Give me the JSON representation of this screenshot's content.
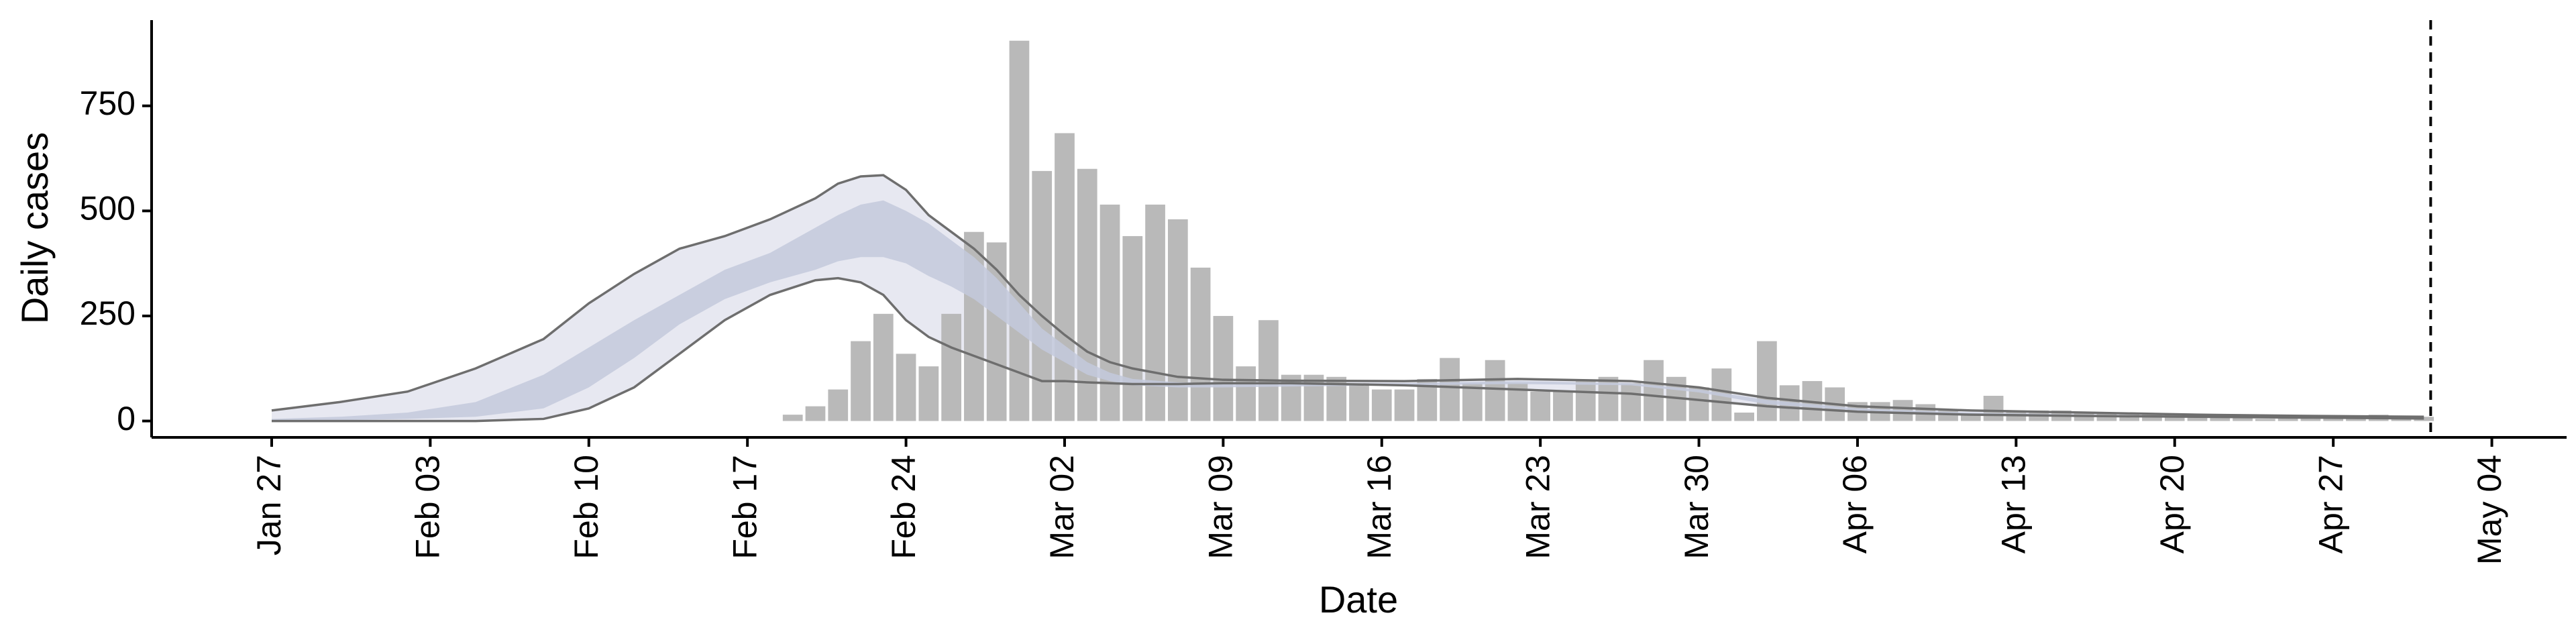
{
  "chart_data": {
    "type": "bar",
    "x_label": "Date",
    "y_label": "Daily cases",
    "x": [
      23,
      24,
      25,
      26,
      27,
      28,
      29,
      30,
      31,
      32,
      33,
      34,
      35,
      36,
      37,
      38,
      39,
      40,
      41,
      42,
      43,
      44,
      45,
      46,
      47,
      48,
      49,
      50,
      51,
      52,
      53,
      54,
      55,
      56,
      57,
      58,
      59,
      60,
      61,
      62,
      63,
      64,
      65,
      66,
      67,
      68,
      69,
      70,
      71,
      72,
      73,
      74,
      75,
      76,
      77,
      78,
      79,
      80,
      81,
      82,
      83,
      84,
      85,
      86,
      87,
      88,
      89,
      90,
      91,
      92,
      93,
      94,
      95
    ],
    "values": [
      15,
      35,
      75,
      190,
      255,
      160,
      130,
      255,
      450,
      425,
      905,
      595,
      685,
      600,
      515,
      440,
      515,
      480,
      365,
      250,
      130,
      240,
      110,
      110,
      105,
      90,
      75,
      75,
      100,
      150,
      90,
      145,
      90,
      70,
      70,
      95,
      105,
      90,
      145,
      105,
      80,
      125,
      20,
      190,
      85,
      95,
      80,
      45,
      45,
      50,
      40,
      25,
      15,
      60,
      25,
      25,
      25,
      20,
      20,
      15,
      15,
      15,
      15,
      10,
      10,
      5,
      10,
      10,
      10,
      10,
      15,
      5,
      10
    ],
    "color": "#b9b9b9",
    "ribbons": {
      "x": [
        0,
        3,
        6,
        9,
        12,
        14,
        16,
        18,
        20,
        22,
        24,
        25,
        26,
        27,
        28,
        29,
        30,
        31,
        32,
        33,
        34,
        35,
        36,
        37,
        38,
        40,
        42,
        45,
        50,
        55,
        60,
        63,
        66,
        70,
        75,
        80,
        85,
        90,
        95
      ],
      "outer_upper": [
        25,
        45,
        70,
        125,
        195,
        280,
        350,
        410,
        440,
        480,
        530,
        565,
        582,
        585,
        550,
        490,
        450,
        410,
        360,
        300,
        250,
        205,
        165,
        140,
        125,
        105,
        98,
        96,
        95,
        100,
        95,
        80,
        55,
        35,
        25,
        20,
        15,
        12,
        10
      ],
      "inner_upper": [
        5,
        10,
        20,
        45,
        110,
        175,
        240,
        300,
        360,
        400,
        460,
        490,
        515,
        525,
        500,
        470,
        430,
        390,
        340,
        280,
        220,
        180,
        140,
        115,
        100,
        92,
        90,
        90,
        90,
        95,
        90,
        75,
        50,
        30,
        20,
        15,
        12,
        10,
        8
      ],
      "inner_lower": [
        0,
        2,
        5,
        10,
        30,
        80,
        150,
        230,
        290,
        330,
        360,
        380,
        390,
        390,
        375,
        345,
        320,
        290,
        250,
        210,
        170,
        140,
        110,
        95,
        85,
        80,
        80,
        82,
        85,
        88,
        85,
        68,
        40,
        25,
        15,
        12,
        10,
        8,
        6
      ],
      "outer_lower": [
        0,
        0,
        0,
        0,
        5,
        30,
        80,
        160,
        240,
        300,
        335,
        340,
        330,
        300,
        240,
        200,
        175,
        155,
        135,
        115,
        95,
        95,
        92,
        90,
        88,
        88,
        90,
        90,
        85,
        75,
        65,
        50,
        35,
        22,
        15,
        12,
        10,
        8,
        6
      ],
      "outer_color": "#e7e8f1",
      "inner_color": "#c3c9dc",
      "line_color": "#6e6e6e"
    },
    "vline_x": 95.3,
    "xlim": [
      -5.3,
      101.3
    ],
    "xticks": [
      {
        "value": 0,
        "label": "Jan 27"
      },
      {
        "value": 7,
        "label": "Feb 03"
      },
      {
        "value": 14,
        "label": "Feb 10"
      },
      {
        "value": 21,
        "label": "Feb 17"
      },
      {
        "value": 28,
        "label": "Feb 24"
      },
      {
        "value": 35,
        "label": "Mar 02"
      },
      {
        "value": 42,
        "label": "Mar 09"
      },
      {
        "value": 49,
        "label": "Mar 16"
      },
      {
        "value": 56,
        "label": "Mar 23"
      },
      {
        "value": 63,
        "label": "Mar 30"
      },
      {
        "value": 70,
        "label": "Apr 06"
      },
      {
        "value": 77,
        "label": "Apr 13"
      },
      {
        "value": 84,
        "label": "Apr 20"
      },
      {
        "value": 91,
        "label": "Apr 27"
      },
      {
        "value": 98,
        "label": "May 04"
      }
    ],
    "ylim": [
      -39,
      954
    ],
    "yticks": [
      0,
      250,
      500,
      750
    ]
  }
}
